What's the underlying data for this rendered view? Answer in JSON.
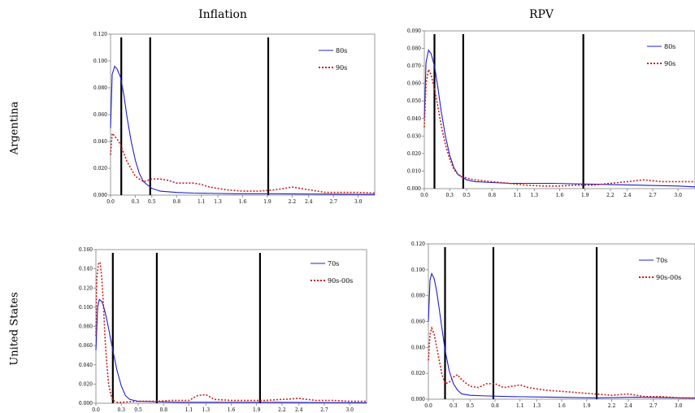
{
  "headers": {
    "col_left": "Inflation",
    "col_right": "RPV",
    "row_top": "Argentina",
    "row_bottom": "United States"
  },
  "colors": {
    "series1": "#1f1fc8",
    "series2": "#c81e1e",
    "vlines": "#000000",
    "axis": "#808080"
  },
  "chart_data": [
    {
      "id": "arg-inflation",
      "type": "line",
      "x_ticks": [
        "0.0",
        "0.3",
        "0.5",
        "0.8",
        "1.1",
        "1.3",
        "1.6",
        "1.9",
        "2.2",
        "2.4",
        "2.7",
        "3.0"
      ],
      "y_ticks": [
        "0.000",
        "0.020",
        "0.040",
        "0.060",
        "0.080",
        "0.100",
        "0.120"
      ],
      "xlim": [
        0,
        3.2
      ],
      "ylim": [
        0,
        0.12
      ],
      "vlines": [
        0.13,
        0.48,
        1.91
      ],
      "series": [
        {
          "name": "80s",
          "style": "solid",
          "x": [
            0.0,
            0.02,
            0.05,
            0.08,
            0.12,
            0.16,
            0.2,
            0.25,
            0.3,
            0.35,
            0.4,
            0.5,
            0.6,
            0.8,
            1.0,
            1.5,
            2.0,
            2.5,
            3.2
          ],
          "y": [
            0.05,
            0.09,
            0.096,
            0.094,
            0.088,
            0.075,
            0.058,
            0.04,
            0.026,
            0.016,
            0.01,
            0.005,
            0.003,
            0.002,
            0.0015,
            0.001,
            0.001,
            0.0008,
            0.0005
          ]
        },
        {
          "name": "90s",
          "style": "dotted",
          "x": [
            0.0,
            0.02,
            0.05,
            0.1,
            0.15,
            0.2,
            0.3,
            0.4,
            0.5,
            0.6,
            0.7,
            0.8,
            0.9,
            1.0,
            1.1,
            1.2,
            1.4,
            1.6,
            1.8,
            2.0,
            2.2,
            2.4,
            2.6,
            2.8,
            3.0,
            3.2
          ],
          "y": [
            0.03,
            0.046,
            0.044,
            0.04,
            0.033,
            0.025,
            0.014,
            0.01,
            0.012,
            0.012,
            0.011,
            0.009,
            0.009,
            0.009,
            0.008,
            0.006,
            0.004,
            0.003,
            0.003,
            0.004,
            0.006,
            0.004,
            0.002,
            0.002,
            0.002,
            0.0015
          ]
        }
      ]
    },
    {
      "id": "arg-rpv",
      "type": "line",
      "x_ticks": [
        "0.0",
        "0.3",
        "0.5",
        "0.8",
        "1.1",
        "1.3",
        "1.6",
        "1.9",
        "2.2",
        "2.4",
        "2.7",
        "3.0"
      ],
      "y_ticks": [
        "0.000",
        "0.010",
        "0.020",
        "0.030",
        "0.040",
        "0.050",
        "0.060",
        "0.070",
        "0.080",
        "0.090"
      ],
      "xlim": [
        0,
        3.2
      ],
      "ylim": [
        0,
        0.09
      ],
      "vlines": [
        0.12,
        0.46,
        1.88
      ],
      "series": [
        {
          "name": "80s",
          "style": "solid",
          "x": [
            0.0,
            0.02,
            0.05,
            0.08,
            0.12,
            0.16,
            0.2,
            0.25,
            0.3,
            0.35,
            0.4,
            0.5,
            0.6,
            0.8,
            1.0,
            1.5,
            2.0,
            2.5,
            3.0,
            3.2
          ],
          "y": [
            0.04,
            0.072,
            0.079,
            0.077,
            0.07,
            0.058,
            0.044,
            0.03,
            0.019,
            0.012,
            0.008,
            0.005,
            0.004,
            0.0035,
            0.003,
            0.003,
            0.0025,
            0.002,
            0.0015,
            0.001
          ]
        },
        {
          "name": "90s",
          "style": "dotted",
          "x": [
            0.0,
            0.02,
            0.05,
            0.08,
            0.12,
            0.16,
            0.2,
            0.25,
            0.3,
            0.35,
            0.4,
            0.5,
            0.6,
            0.8,
            1.0,
            1.2,
            1.4,
            1.6,
            1.8,
            2.0,
            2.2,
            2.4,
            2.6,
            2.8,
            3.0,
            3.2
          ],
          "y": [
            0.035,
            0.06,
            0.068,
            0.065,
            0.057,
            0.047,
            0.036,
            0.025,
            0.017,
            0.011,
            0.008,
            0.006,
            0.005,
            0.004,
            0.003,
            0.002,
            0.0015,
            0.0015,
            0.002,
            0.002,
            0.003,
            0.004,
            0.005,
            0.004,
            0.004,
            0.004
          ]
        }
      ]
    },
    {
      "id": "us-inflation",
      "type": "line",
      "x_ticks": [
        "0.0",
        "0.3",
        "0.5",
        "0.8",
        "1.1",
        "1.3",
        "1.6",
        "1.9",
        "2.2",
        "2.4",
        "2.7",
        "3.0"
      ],
      "y_ticks": [
        "0.000",
        "0.020",
        "0.040",
        "0.060",
        "0.080",
        "0.100",
        "0.120",
        "0.140",
        "0.160"
      ],
      "xlim": [
        0,
        3.2
      ],
      "ylim": [
        0,
        0.16
      ],
      "vlines": [
        0.2,
        0.72,
        1.94
      ],
      "series": [
        {
          "name": "70s",
          "style": "solid",
          "x": [
            0.0,
            0.02,
            0.04,
            0.07,
            0.1,
            0.13,
            0.16,
            0.2,
            0.25,
            0.3,
            0.35,
            0.4,
            0.5,
            0.7,
            1.0,
            1.5,
            2.0,
            2.5,
            3.2
          ],
          "y": [
            0.055,
            0.1,
            0.108,
            0.106,
            0.098,
            0.087,
            0.073,
            0.055,
            0.034,
            0.018,
            0.008,
            0.004,
            0.002,
            0.0015,
            0.001,
            0.001,
            0.001,
            0.0008,
            0.0005
          ]
        },
        {
          "name": "90s-00s",
          "style": "dotted",
          "x": [
            0.0,
            0.01,
            0.03,
            0.05,
            0.07,
            0.09,
            0.11,
            0.13,
            0.15,
            0.18,
            0.2,
            0.25,
            0.3,
            0.5,
            0.7,
            0.9,
            1.1,
            1.2,
            1.3,
            1.4,
            1.6,
            1.8,
            2.0,
            2.2,
            2.4,
            2.6,
            2.8,
            3.0,
            3.2
          ],
          "y": [
            0.07,
            0.13,
            0.145,
            0.147,
            0.13,
            0.1,
            0.065,
            0.04,
            0.02,
            0.008,
            0.003,
            0.001,
            0.001,
            0.002,
            0.002,
            0.003,
            0.003,
            0.008,
            0.009,
            0.004,
            0.003,
            0.003,
            0.003,
            0.004,
            0.005,
            0.003,
            0.003,
            0.002,
            0.002
          ]
        }
      ]
    },
    {
      "id": "us-rpv",
      "type": "line",
      "x_ticks": [
        "0.0",
        "0.3",
        "0.5",
        "0.8",
        "1.1",
        "1.3",
        "1.6",
        "1.9",
        "2.2",
        "2.4",
        "2.7",
        "3.0"
      ],
      "y_ticks": [
        "0.000",
        "0.020",
        "0.040",
        "0.060",
        "0.080",
        "0.100",
        "0.120"
      ],
      "xlim": [
        0,
        3.2
      ],
      "ylim": [
        0,
        0.12
      ],
      "vlines": [
        0.2,
        0.78,
        2.02
      ],
      "series": [
        {
          "name": "70s",
          "style": "solid",
          "x": [
            0.0,
            0.02,
            0.04,
            0.07,
            0.1,
            0.13,
            0.16,
            0.2,
            0.25,
            0.3,
            0.35,
            0.4,
            0.5,
            0.7,
            1.0,
            1.5,
            2.0,
            2.5,
            3.0,
            3.2
          ],
          "y": [
            0.06,
            0.092,
            0.097,
            0.093,
            0.083,
            0.07,
            0.056,
            0.038,
            0.022,
            0.012,
            0.007,
            0.004,
            0.003,
            0.0025,
            0.002,
            0.0015,
            0.001,
            0.0015,
            0.001,
            0.0008
          ]
        },
        {
          "name": "90s-00s",
          "style": "dotted",
          "x": [
            0.0,
            0.02,
            0.04,
            0.07,
            0.1,
            0.13,
            0.16,
            0.2,
            0.25,
            0.3,
            0.35,
            0.4,
            0.5,
            0.6,
            0.7,
            0.8,
            0.9,
            1.0,
            1.1,
            1.2,
            1.4,
            1.6,
            1.8,
            2.0,
            2.2,
            2.4,
            2.6,
            2.8,
            3.0,
            3.2
          ],
          "y": [
            0.03,
            0.05,
            0.055,
            0.05,
            0.04,
            0.03,
            0.02,
            0.012,
            0.013,
            0.017,
            0.019,
            0.015,
            0.01,
            0.009,
            0.012,
            0.012,
            0.009,
            0.01,
            0.011,
            0.009,
            0.007,
            0.006,
            0.005,
            0.004,
            0.003,
            0.004,
            0.002,
            0.002,
            0.001,
            0.001
          ]
        }
      ]
    }
  ]
}
